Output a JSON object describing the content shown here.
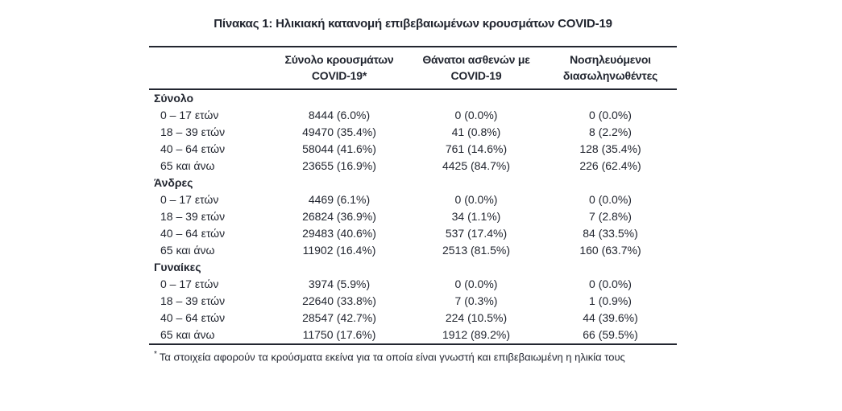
{
  "title": "Πίνακας 1: Ηλικιακή κατανομή επιβεβαιωμένων κρουσμάτων COVID-19",
  "table": {
    "columns": [
      {
        "line1": "Σύνολο κρουσμάτων",
        "line2": "COVID-19*"
      },
      {
        "line1": "Θάνατοι ασθενών με",
        "line2": "COVID-19"
      },
      {
        "line1": "Νοσηλευόμενοι",
        "line2": "διασωληνωθέντες"
      }
    ],
    "sections": [
      {
        "label": "Σύνολο",
        "rows": [
          {
            "label": "0 – 17 ετών",
            "cases": "8444 (6.0%)",
            "deaths": "0 (0.0%)",
            "intubated": "0 (0.0%)"
          },
          {
            "label": "18 – 39 ετών",
            "cases": "49470 (35.4%)",
            "deaths": "41 (0.8%)",
            "intubated": "8 (2.2%)"
          },
          {
            "label": "40 – 64 ετών",
            "cases": "58044 (41.6%)",
            "deaths": "761 (14.6%)",
            "intubated": "128 (35.4%)"
          },
          {
            "label": "65 και άνω",
            "cases": "23655 (16.9%)",
            "deaths": "4425 (84.7%)",
            "intubated": "226 (62.4%)"
          }
        ]
      },
      {
        "label": "Άνδρες",
        "rows": [
          {
            "label": "0 – 17 ετών",
            "cases": "4469 (6.1%)",
            "deaths": "0 (0.0%)",
            "intubated": "0 (0.0%)"
          },
          {
            "label": "18 – 39 ετών",
            "cases": "26824 (36.9%)",
            "deaths": "34 (1.1%)",
            "intubated": "7 (2.8%)"
          },
          {
            "label": "40 – 64 ετών",
            "cases": "29483 (40.6%)",
            "deaths": "537 (17.4%)",
            "intubated": "84 (33.5%)"
          },
          {
            "label": "65 και άνω",
            "cases": "11902 (16.4%)",
            "deaths": "2513 (81.5%)",
            "intubated": "160 (63.7%)"
          }
        ]
      },
      {
        "label": "Γυναίκες",
        "rows": [
          {
            "label": "0 – 17 ετών",
            "cases": "3974 (5.9%)",
            "deaths": "0 (0.0%)",
            "intubated": "0 (0.0%)"
          },
          {
            "label": "18 – 39 ετών",
            "cases": "22640 (33.8%)",
            "deaths": "7 (0.3%)",
            "intubated": "1 (0.9%)"
          },
          {
            "label": "40 – 64 ετών",
            "cases": "28547 (42.7%)",
            "deaths": "224 (10.5%)",
            "intubated": "44 (39.6%)"
          },
          {
            "label": "65 και άνω",
            "cases": "11750 (17.6%)",
            "deaths": "1912 (89.2%)",
            "intubated": "66 (59.5%)"
          }
        ]
      }
    ]
  },
  "footnote": {
    "marker": "*",
    "text": "Τα στοιχεία αφορούν τα κρούσματα εκείνα για τα οποία είναι γνωστή και επιβεβαιωμένη η ηλικία τους"
  },
  "colors": {
    "text": "#222630",
    "rule": "#222630",
    "background": "#ffffff"
  }
}
